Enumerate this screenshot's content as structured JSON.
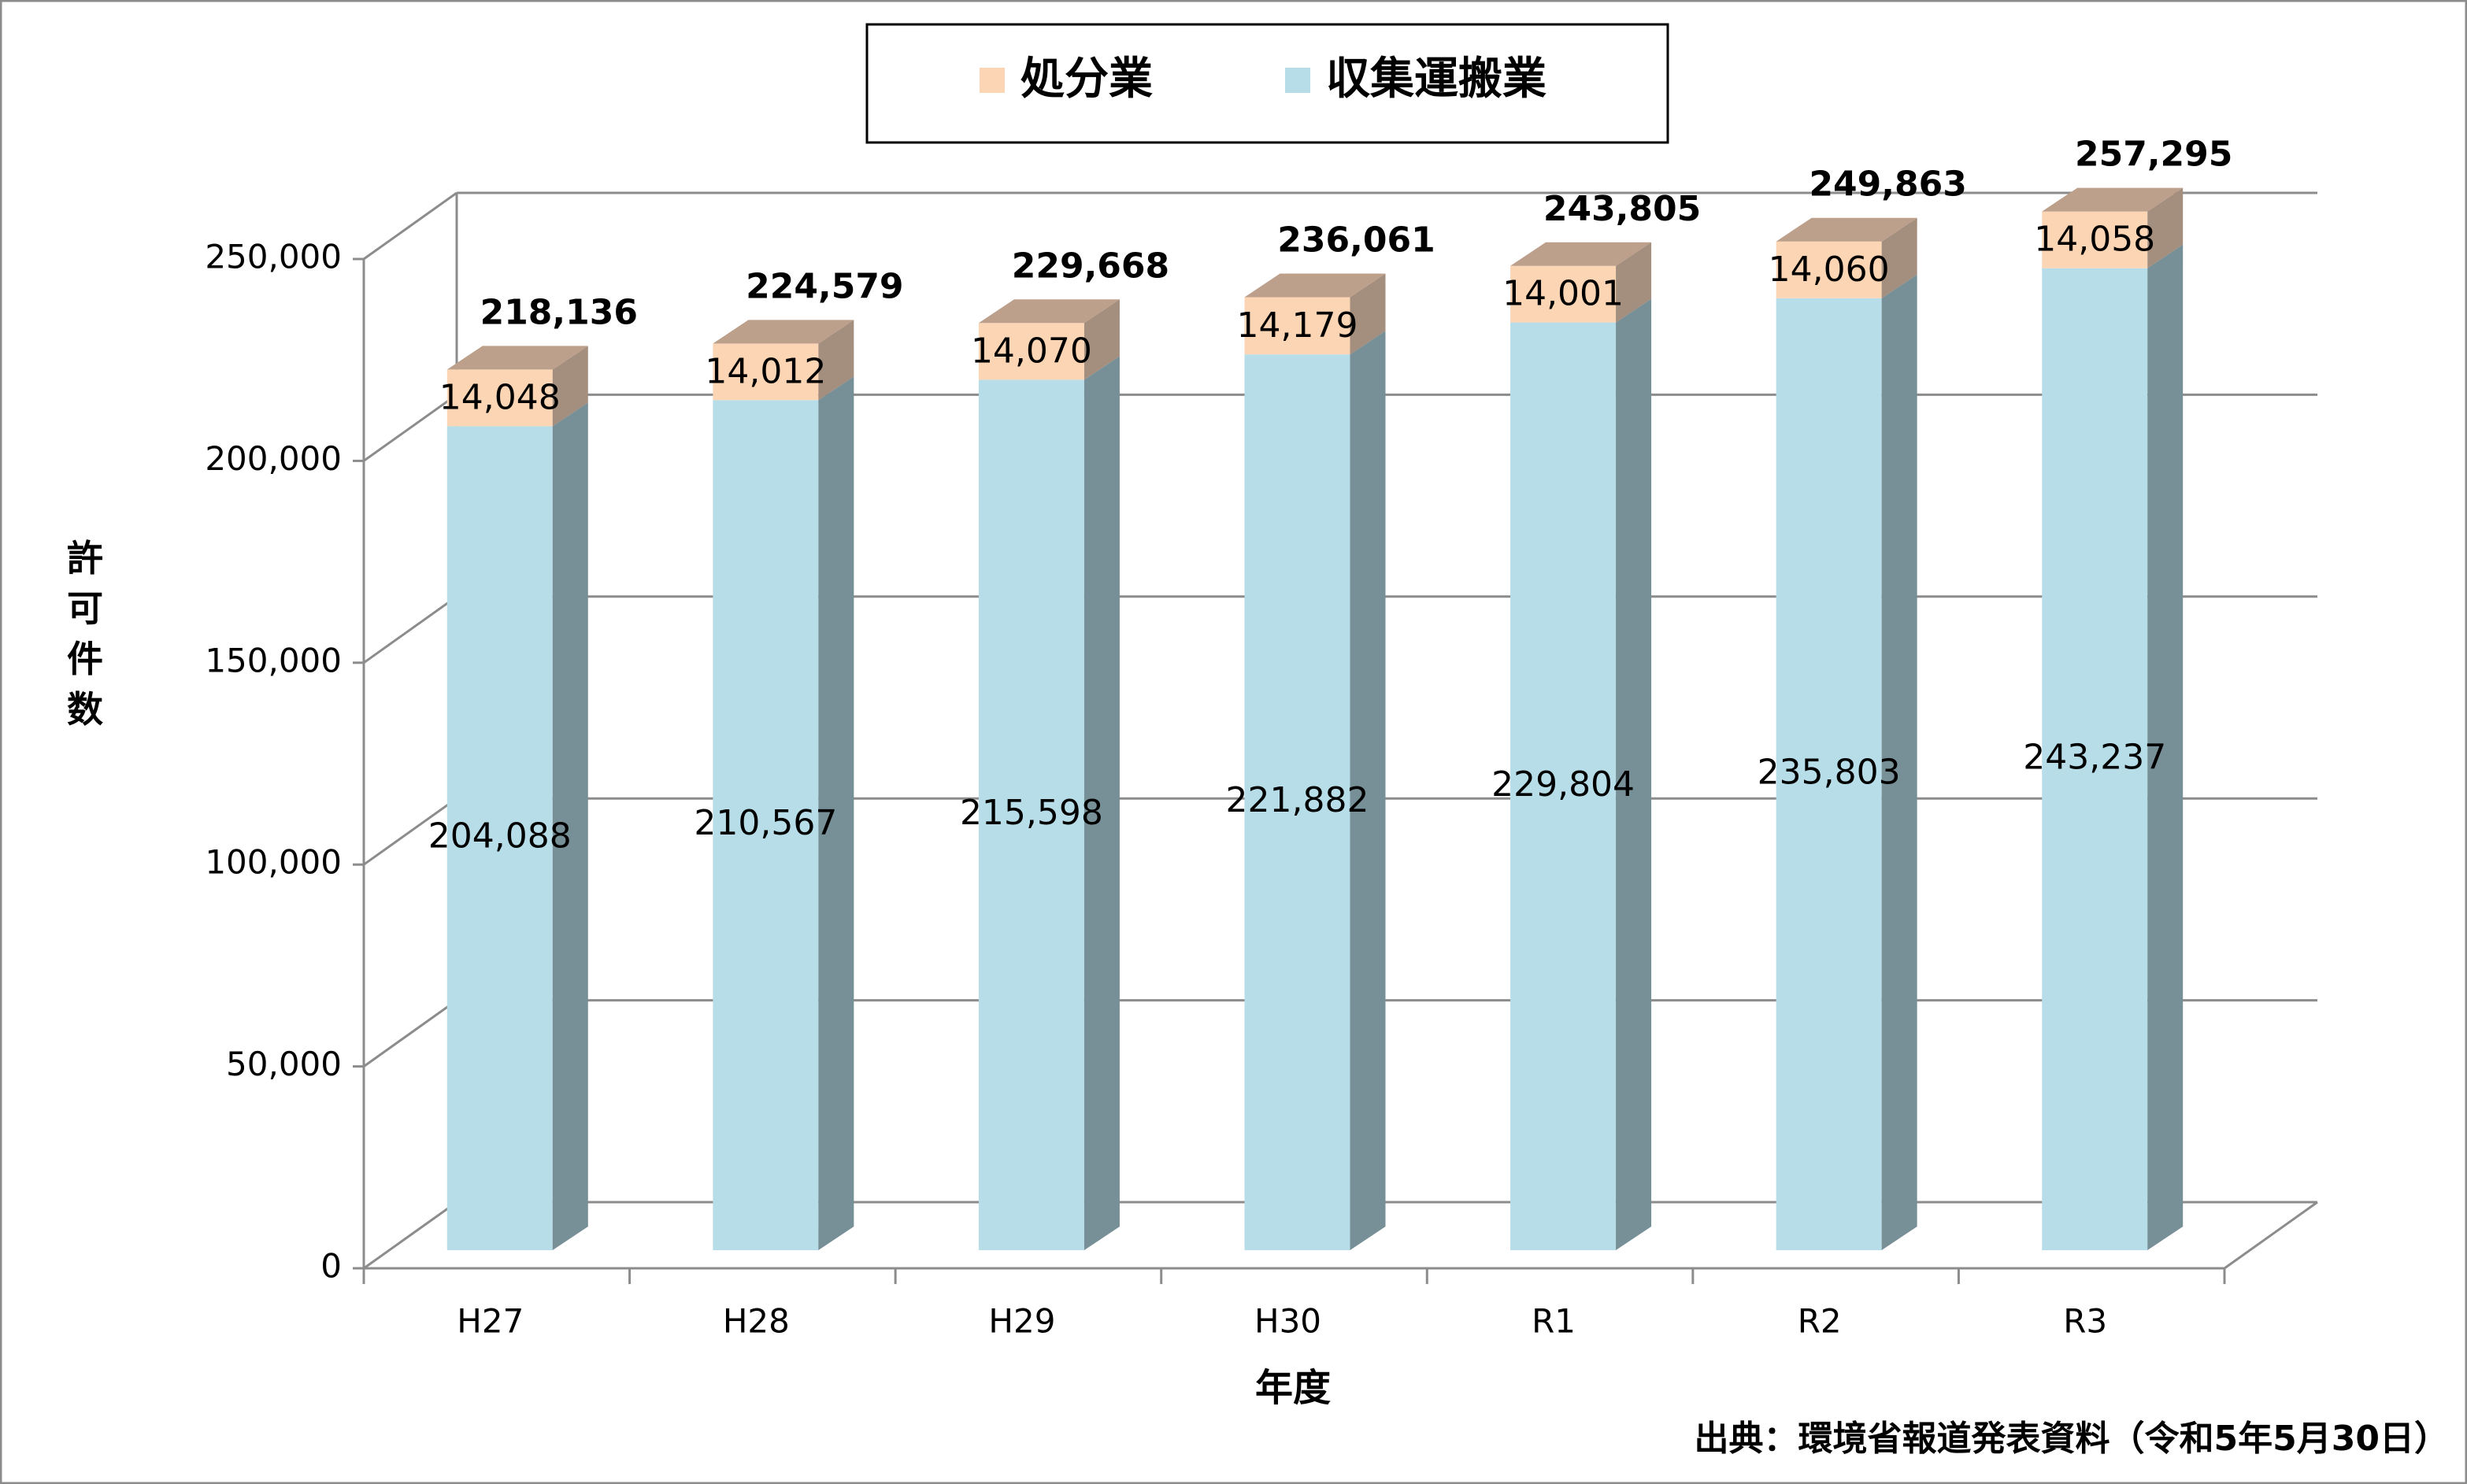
{
  "chart_data": {
    "type": "bar",
    "stacked": true,
    "style": "3d-column",
    "title": "",
    "xlabel": "年度",
    "ylabel": "許可件数",
    "ylim": [
      0,
      250000
    ],
    "ytick_values": [
      0,
      50000,
      100000,
      150000,
      200000,
      250000
    ],
    "ytick_labels": [
      "0",
      "50,000",
      "100,000",
      "150,000",
      "200,000",
      "250,000"
    ],
    "categories": [
      "H27",
      "H28",
      "H29",
      "H30",
      "R1",
      "R2",
      "R3"
    ],
    "series": [
      {
        "name": "収集運搬業",
        "values": [
          204088,
          210567,
          215598,
          221882,
          229804,
          235803,
          243237
        ],
        "labels": [
          "204,088",
          "210,567",
          "215,598",
          "221,882",
          "229,804",
          "235,803",
          "243,237"
        ],
        "color": "#B7DEE8",
        "side_color": "#778F97",
        "top_color": "#8FB3BE"
      },
      {
        "name": "処分業",
        "values": [
          14048,
          14012,
          14070,
          14179,
          14001,
          14060,
          14058
        ],
        "labels": [
          "14,048",
          "14,012",
          "14,070",
          "14,179",
          "14,001",
          "14,060",
          "14,058"
        ],
        "color": "#FCD5B5",
        "side_color": "#A48E7D",
        "top_color": "#BDA08C"
      }
    ],
    "totals": [
      218136,
      224579,
      229668,
      236061,
      243805,
      249863,
      257295
    ],
    "total_labels": [
      "218,136",
      "224,579",
      "229,668",
      "236,061",
      "243,805",
      "249,863",
      "257,295"
    ],
    "legend": {
      "position": "top-center",
      "entries": [
        "処分業",
        "収集運搬業"
      ]
    },
    "grid": true,
    "source": "出典：環境省報道発表資料（令和5年5月30日）"
  }
}
